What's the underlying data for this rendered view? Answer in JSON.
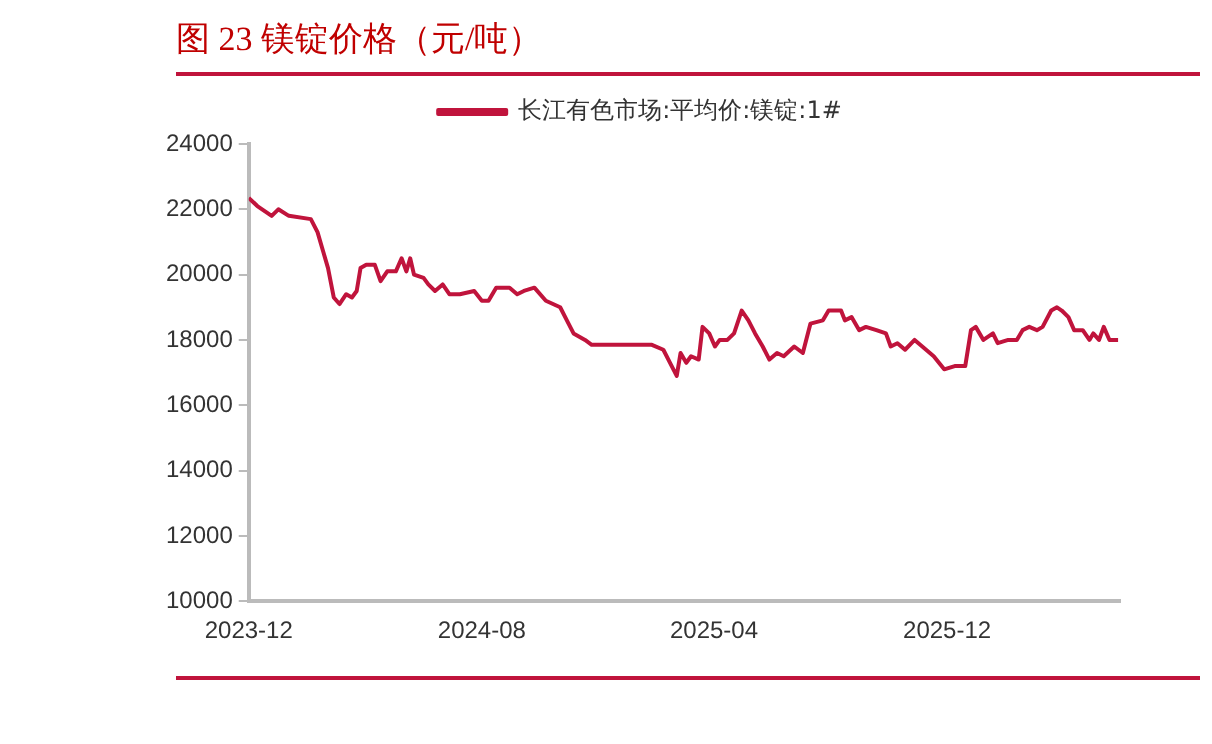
{
  "chart_data": {
    "type": "line",
    "title": "图 23 镁锭价格（元/吨）",
    "x": [
      "2023-12-01",
      "2023-12-10",
      "2023-12-25",
      "2024-01-01",
      "2024-01-12",
      "2024-02-04",
      "2024-02-11",
      "2024-02-17",
      "2024-02-22",
      "2024-02-28",
      "2024-03-05",
      "2024-03-12",
      "2024-03-18",
      "2024-03-23",
      "2024-03-27",
      "2024-04-02",
      "2024-04-11",
      "2024-04-17",
      "2024-04-24",
      "2024-05-03",
      "2024-05-09",
      "2024-05-14",
      "2024-05-18",
      "2024-05-22",
      "2024-06-01",
      "2024-06-06",
      "2024-06-13",
      "2024-06-21",
      "2024-06-28",
      "2024-07-09",
      "2024-07-24",
      "2024-08-01",
      "2024-08-08",
      "2024-08-16",
      "2024-08-30",
      "2024-09-07",
      "2024-09-14",
      "2024-09-25",
      "2024-10-07",
      "2024-10-22",
      "2024-10-29",
      "2024-11-05",
      "2024-11-17",
      "2024-11-24",
      "2025-01-26",
      "2025-02-07",
      "2025-02-14",
      "2025-02-21",
      "2025-02-25",
      "2025-03-03",
      "2025-03-08",
      "2025-03-16",
      "2025-03-20",
      "2025-03-27",
      "2025-04-02",
      "2025-04-07",
      "2025-04-15",
      "2025-04-22",
      "2025-04-30",
      "2025-05-07",
      "2025-05-14",
      "2025-05-22",
      "2025-05-29",
      "2025-06-06",
      "2025-06-13",
      "2025-06-24",
      "2025-07-03",
      "2025-07-11",
      "2025-07-24",
      "2025-07-30",
      "2025-08-12",
      "2025-08-16",
      "2025-08-23",
      "2025-08-31",
      "2025-09-07",
      "2025-09-18",
      "2025-09-28",
      "2025-10-03",
      "2025-10-10",
      "2025-10-18",
      "2025-10-28",
      "2025-11-05",
      "2025-11-17",
      "2025-11-28",
      "2025-12-09",
      "2025-12-20",
      "2025-12-26",
      "2025-12-31",
      "2026-01-08",
      "2026-01-18",
      "2026-01-23",
      "2026-02-03",
      "2026-02-12",
      "2026-02-18",
      "2026-02-25",
      "2026-03-05",
      "2026-03-11",
      "2026-03-20",
      "2026-03-26",
      "2026-03-31",
      "2026-04-07",
      "2026-04-13",
      "2026-04-22",
      "2026-04-29",
      "2026-05-03",
      "2026-05-09",
      "2026-05-14",
      "2026-05-20",
      "2026-05-29"
    ],
    "series": [
      {
        "name": "长江有色市场:平均价:镁锭:1#",
        "color": "#c0143c",
        "values": [
          22350,
          22100,
          21800,
          22000,
          21800,
          21700,
          21300,
          20700,
          20200,
          19300,
          19100,
          19400,
          19300,
          19500,
          20200,
          20300,
          20300,
          19800,
          20100,
          20100,
          20500,
          20100,
          20500,
          20000,
          19900,
          19700,
          19500,
          19700,
          19400,
          19400,
          19500,
          19200,
          19200,
          19600,
          19600,
          19400,
          19500,
          19600,
          19200,
          19000,
          18600,
          18200,
          18000,
          17850,
          17850,
          17700,
          17300,
          16900,
          17600,
          17300,
          17500,
          17400,
          18400,
          18200,
          17800,
          18000,
          18000,
          18200,
          18900,
          18600,
          18200,
          17800,
          17400,
          17600,
          17500,
          17800,
          17600,
          18500,
          18600,
          18900,
          18900,
          18600,
          18700,
          18300,
          18400,
          18300,
          18200,
          17800,
          17900,
          17700,
          18000,
          17800,
          17500,
          17100,
          17200,
          17200,
          18300,
          18400,
          18000,
          18200,
          17900,
          18000,
          18000,
          18300,
          18400,
          18300,
          18400,
          18900,
          19000,
          18900,
          18700,
          18300,
          18300,
          18000,
          18200,
          18000,
          18400,
          18000,
          18000
        ]
      }
    ],
    "xlim": [
      "2023-12-01",
      "2026-05-31"
    ],
    "xticks": [
      {
        "value": "2023-12-01",
        "label": "2023-12"
      },
      {
        "value": "2024-08-01",
        "label": "2024-08"
      },
      {
        "value": "2025-04-01",
        "label": "2025-04"
      },
      {
        "value": "2025-12-01",
        "label": "2025-12"
      }
    ],
    "ylim": [
      10000,
      24000
    ],
    "yticks": [
      10000,
      12000,
      14000,
      16000,
      18000,
      20000,
      22000,
      24000
    ],
    "grid": false,
    "legend": "top",
    "marker": "none",
    "line_style": "solid"
  }
}
